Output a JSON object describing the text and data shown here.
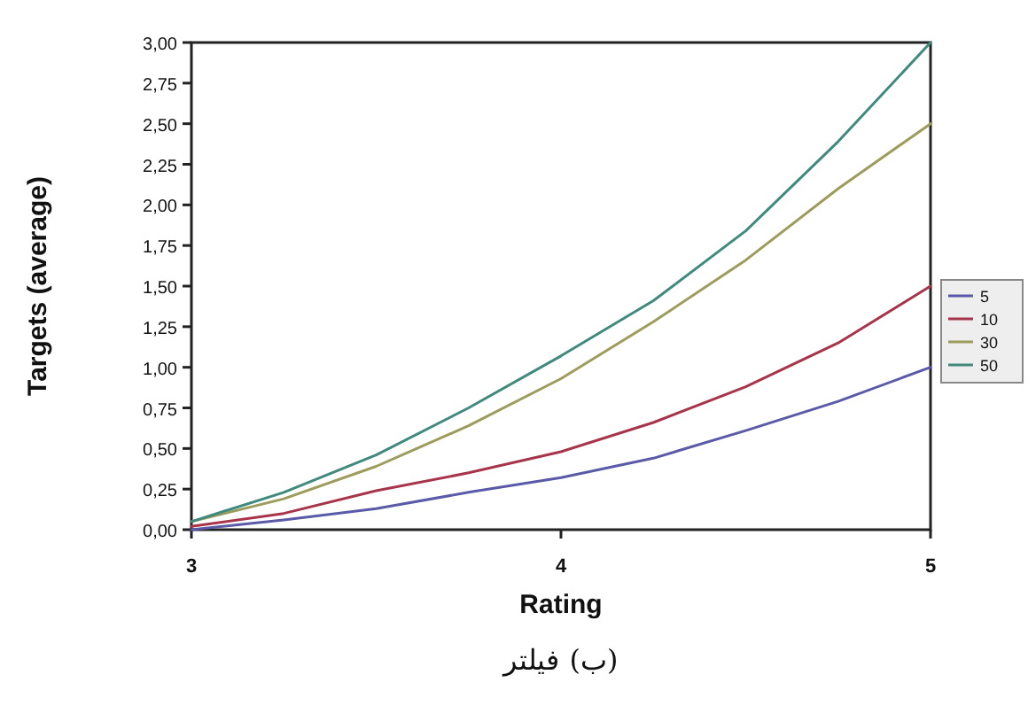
{
  "chart_data": {
    "type": "line",
    "xlabel": "Rating",
    "ylabel": "Targets (average)",
    "x": [
      3,
      3.25,
      3.5,
      3.75,
      4,
      4.25,
      4.5,
      4.75,
      5
    ],
    "series": [
      {
        "name": "5",
        "color": "#5a5aa8",
        "values": [
          0.0,
          0.06,
          0.13,
          0.23,
          0.32,
          0.44,
          0.61,
          0.79,
          1.0
        ]
      },
      {
        "name": "10",
        "color": "#a8344a",
        "values": [
          0.02,
          0.1,
          0.24,
          0.35,
          0.48,
          0.66,
          0.88,
          1.15,
          1.5
        ]
      },
      {
        "name": "30",
        "color": "#9c9c5c",
        "values": [
          0.05,
          0.19,
          0.39,
          0.64,
          0.93,
          1.28,
          1.66,
          2.1,
          2.5
        ]
      },
      {
        "name": "50",
        "color": "#3f8a7c",
        "values": [
          0.05,
          0.23,
          0.46,
          0.75,
          1.07,
          1.41,
          1.84,
          2.39,
          3.0
        ]
      }
    ],
    "xlim": [
      3,
      5
    ],
    "xticks": [
      3,
      4,
      5
    ],
    "ylim": [
      0,
      3
    ],
    "yticks": [
      {
        "value": 0,
        "label": "0,00"
      },
      {
        "value": 0.25,
        "label": "0,25"
      },
      {
        "value": 0.5,
        "label": "0,50"
      },
      {
        "value": 0.75,
        "label": "0,75"
      },
      {
        "value": 1,
        "label": "1,00"
      },
      {
        "value": 1.25,
        "label": "1,25"
      },
      {
        "value": 1.5,
        "label": "1,50"
      },
      {
        "value": 1.75,
        "label": "1,75"
      },
      {
        "value": 2,
        "label": "2,00"
      },
      {
        "value": 2.25,
        "label": "2,25"
      },
      {
        "value": 2.5,
        "label": "2,50"
      },
      {
        "value": 2.75,
        "label": "2,75"
      },
      {
        "value": 3,
        "label": "3,00"
      }
    ],
    "legend": "right",
    "annotations": [
      "(ب) فيلتر"
    ]
  }
}
